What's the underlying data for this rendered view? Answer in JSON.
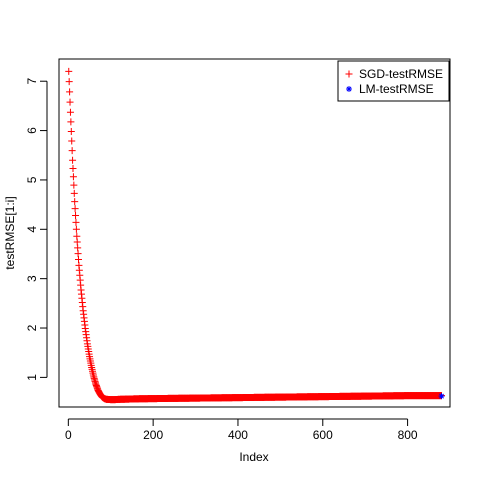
{
  "chart_data": {
    "type": "scatter",
    "title": "",
    "xlabel": "Index",
    "ylabel": "testRMSE[1:i]",
    "xlim": [
      -22,
      900
    ],
    "ylim": [
      0.4,
      7.45
    ],
    "x_ticks": [
      0,
      200,
      400,
      600,
      800
    ],
    "y_ticks": [
      1,
      2,
      3,
      4,
      5,
      6,
      7
    ],
    "grid": false,
    "legend": {
      "position": "top-right",
      "entries": [
        {
          "label": "SGD-testRMSE",
          "symbol": "+",
          "color": "#ff0000"
        },
        {
          "label": "LM-testRMSE",
          "symbol": "*",
          "color": "#0000ff"
        }
      ]
    },
    "series": [
      {
        "name": "SGD-testRMSE",
        "color": "#ff0000",
        "marker": "+",
        "n": 880,
        "x": [
          1,
          5,
          10,
          15,
          20,
          25,
          30,
          35,
          40,
          45,
          50,
          55,
          60,
          65,
          70,
          75,
          80,
          85,
          90,
          100,
          110,
          120,
          140,
          160,
          200,
          250,
          300,
          350,
          400,
          450,
          500,
          550,
          600,
          650,
          700,
          750,
          800,
          850,
          880
        ],
        "y": [
          7.2,
          6.37,
          5.4,
          4.56,
          3.86,
          3.27,
          2.77,
          2.35,
          1.99,
          1.68,
          1.42,
          1.2,
          1.01,
          0.86,
          0.74,
          0.66,
          0.6,
          0.57,
          0.555,
          0.55,
          0.55,
          0.555,
          0.56,
          0.565,
          0.57,
          0.575,
          0.58,
          0.585,
          0.59,
          0.595,
          0.6,
          0.605,
          0.61,
          0.615,
          0.62,
          0.625,
          0.63,
          0.63,
          0.63
        ]
      },
      {
        "name": "LM-testRMSE",
        "color": "#0000ff",
        "marker": "*",
        "x": [
          880
        ],
        "y": [
          0.62
        ]
      }
    ]
  }
}
